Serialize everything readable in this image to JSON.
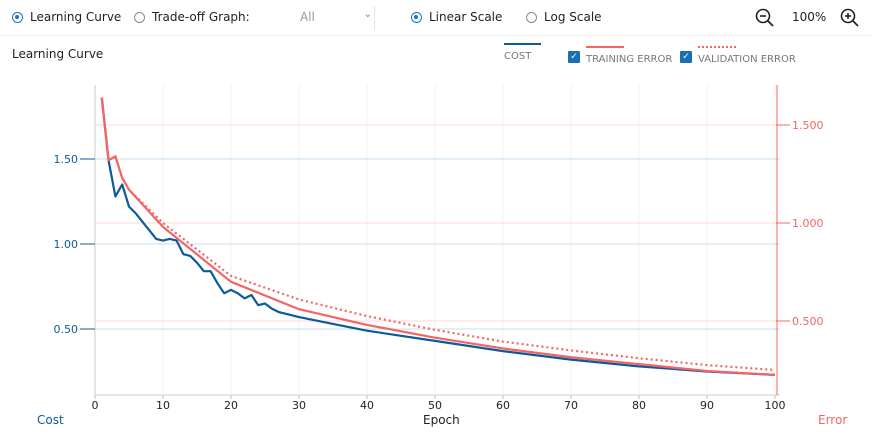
{
  "toolbar": {
    "learning_curve": "Learning Curve",
    "tradeoff": "Trade-off Graph:",
    "select_value": "All",
    "linear": "Linear Scale",
    "log": "Log Scale",
    "zoom": "100%"
  },
  "colors": {
    "cost": "#0b5b9a",
    "error": "#f46464",
    "accent": "#1a73c8"
  },
  "chart_data": {
    "type": "line",
    "title": "Learning Curve",
    "xlabel": "Epoch",
    "ylabel_left": "Cost",
    "ylabel_right": "Error",
    "xlim": [
      0,
      100
    ],
    "ylim_left": [
      0.2,
      1.9
    ],
    "ylim_right": [
      0.2,
      1.7
    ],
    "x_ticks": [
      "0",
      "10",
      "20",
      "30",
      "40",
      "50",
      "60",
      "70",
      "80",
      "90",
      "100"
    ],
    "left_ticks": [
      {
        "v": 0.5,
        "label": "0.50"
      },
      {
        "v": 1.0,
        "label": "1.00"
      },
      {
        "v": 1.5,
        "label": "1.50"
      }
    ],
    "right_ticks": [
      {
        "v": 0.5,
        "label": "0.500"
      },
      {
        "v": 1.0,
        "label": "1.000"
      },
      {
        "v": 1.5,
        "label": "1.500"
      }
    ],
    "legend": {
      "cost": "COST",
      "training": "TRAINING ERROR",
      "validation": "VALIDATION ERROR"
    },
    "series": [
      {
        "name": "Cost",
        "axis": "left",
        "x": [
          1,
          2,
          3,
          4,
          5,
          6,
          7,
          8,
          9,
          10,
          11,
          12,
          13,
          14,
          15,
          16,
          17,
          18,
          19,
          20,
          21,
          22,
          23,
          24,
          25,
          26,
          27,
          28,
          30,
          35,
          40,
          45,
          50,
          55,
          60,
          65,
          70,
          75,
          80,
          85,
          90,
          95,
          100
        ],
        "values": [
          1.86,
          1.49,
          1.28,
          1.35,
          1.22,
          1.18,
          1.13,
          1.08,
          1.03,
          1.02,
          1.03,
          1.02,
          0.94,
          0.93,
          0.89,
          0.84,
          0.84,
          0.77,
          0.71,
          0.73,
          0.71,
          0.68,
          0.7,
          0.64,
          0.65,
          0.62,
          0.6,
          0.59,
          0.57,
          0.53,
          0.49,
          0.46,
          0.43,
          0.4,
          0.37,
          0.345,
          0.32,
          0.3,
          0.28,
          0.265,
          0.25,
          0.24,
          0.23
        ]
      },
      {
        "name": "Training Error",
        "axis": "right",
        "x": [
          1,
          2,
          3,
          4,
          5,
          10,
          20,
          30,
          40,
          50,
          60,
          70,
          80,
          90,
          100
        ],
        "values": [
          1.64,
          1.32,
          1.34,
          1.23,
          1.17,
          0.98,
          0.7,
          0.56,
          0.48,
          0.415,
          0.36,
          0.315,
          0.28,
          0.245,
          0.225
        ]
      },
      {
        "name": "Validation Error",
        "axis": "right",
        "x": [
          1,
          2,
          3,
          4,
          5,
          10,
          20,
          30,
          40,
          50,
          60,
          70,
          80,
          90,
          100
        ],
        "values": [
          1.64,
          1.32,
          1.34,
          1.23,
          1.17,
          1.0,
          0.73,
          0.61,
          0.525,
          0.455,
          0.395,
          0.35,
          0.31,
          0.275,
          0.25
        ]
      }
    ]
  }
}
